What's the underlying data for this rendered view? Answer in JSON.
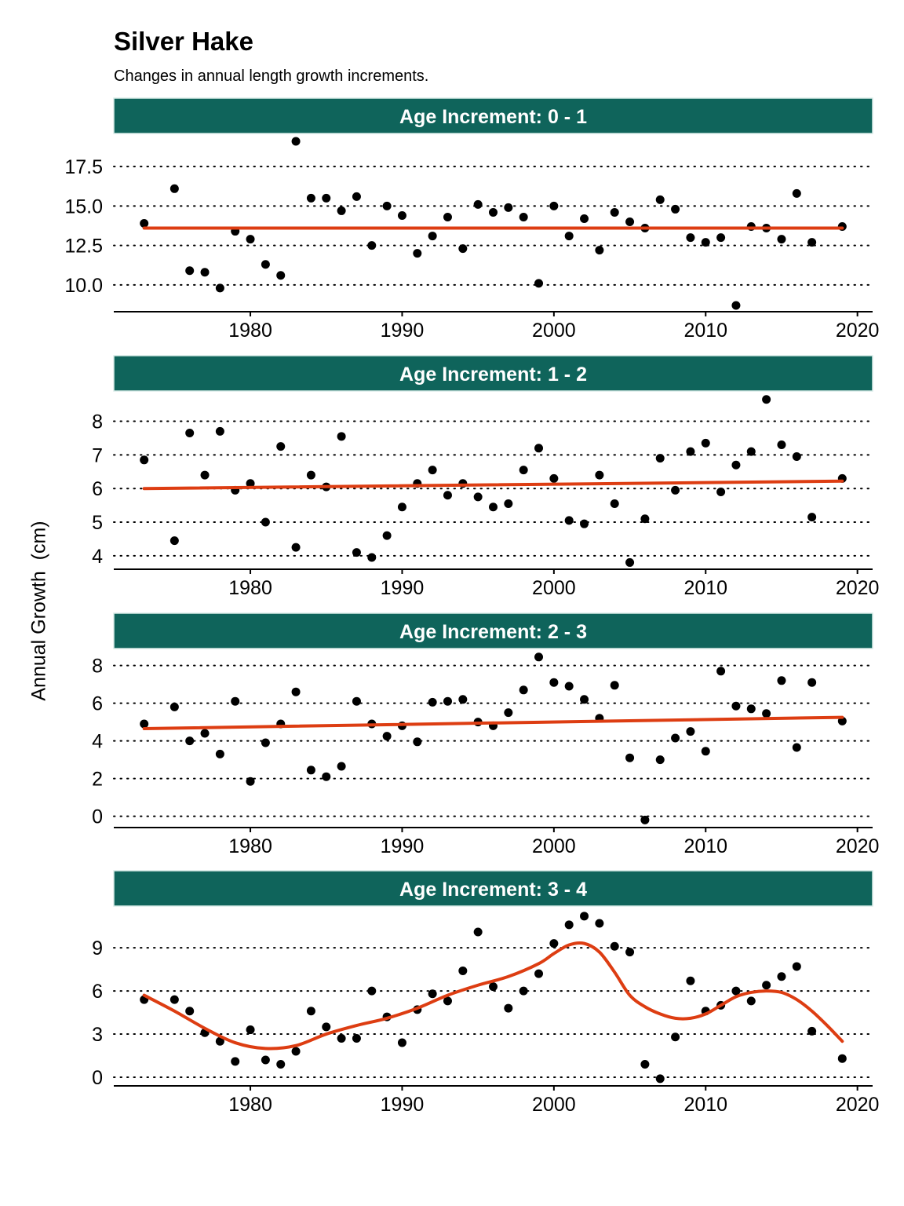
{
  "header": {
    "title": "Silver Hake",
    "subtitle": "Changes in annual length growth increments."
  },
  "y_axis_label": "Annual Growth  (cm)",
  "colors": {
    "strip_fill": "#0f645b",
    "strip_text": "#ffffff",
    "fit_line": "#dd3d12",
    "points": "#000000"
  },
  "chart_data": [
    {
      "type": "scatter",
      "panel_label": "Age Increment: 0 - 1",
      "xlim": [
        1971,
        2021
      ],
      "xticks": [
        1980,
        1990,
        2000,
        2010,
        2020
      ],
      "ylim": [
        8.3,
        19.6
      ],
      "yticks": [
        10,
        12.5,
        15,
        17.5
      ],
      "ytick_labels": [
        "10.0",
        "12.5",
        "15.0",
        "17.5"
      ],
      "grid": "horizontal dotted",
      "points": {
        "x": [
          1973,
          1975,
          1976,
          1977,
          1978,
          1979,
          1980,
          1981,
          1982,
          1983,
          1984,
          1985,
          1986,
          1987,
          1988,
          1989,
          1990,
          1991,
          1992,
          1993,
          1994,
          1995,
          1996,
          1997,
          1998,
          1999,
          2000,
          2001,
          2002,
          2003,
          2004,
          2005,
          2006,
          2007,
          2008,
          2009,
          2010,
          2011,
          2012,
          2013,
          2014,
          2015,
          2016,
          2017,
          2019
        ],
        "y": [
          13.9,
          16.1,
          10.9,
          10.8,
          9.8,
          13.4,
          12.9,
          11.3,
          10.6,
          19.1,
          15.5,
          15.5,
          14.7,
          15.6,
          12.5,
          15.0,
          14.4,
          12.0,
          13.1,
          14.3,
          12.3,
          15.1,
          14.6,
          14.9,
          14.3,
          10.1,
          15.0,
          13.1,
          14.2,
          12.2,
          14.6,
          14.0,
          13.6,
          15.4,
          14.8,
          13.0,
          12.7,
          13.0,
          8.7,
          13.7,
          13.6,
          12.9,
          15.8,
          12.7,
          13.7
        ]
      },
      "fit": {
        "type": "linear",
        "x": [
          1973,
          2019
        ],
        "y": [
          13.6,
          13.6
        ]
      }
    },
    {
      "type": "scatter",
      "panel_label": "Age Increment: 1 - 2",
      "xlim": [
        1971,
        2021
      ],
      "xticks": [
        1980,
        1990,
        2000,
        2010,
        2020
      ],
      "ylim": [
        3.6,
        8.9
      ],
      "yticks": [
        4,
        5,
        6,
        7,
        8
      ],
      "ytick_labels": [
        "4",
        "5",
        "6",
        "7",
        "8"
      ],
      "grid": "horizontal dotted",
      "points": {
        "x": [
          1973,
          1975,
          1976,
          1977,
          1978,
          1979,
          1980,
          1981,
          1982,
          1983,
          1984,
          1985,
          1986,
          1987,
          1988,
          1989,
          1990,
          1991,
          1992,
          1993,
          1994,
          1995,
          1996,
          1997,
          1998,
          1999,
          2000,
          2001,
          2002,
          2003,
          2004,
          2005,
          2006,
          2007,
          2008,
          2009,
          2010,
          2011,
          2012,
          2013,
          2014,
          2015,
          2016,
          2017,
          2019
        ],
        "y": [
          6.85,
          4.45,
          7.65,
          6.4,
          7.7,
          5.95,
          6.15,
          5.0,
          7.25,
          4.25,
          6.4,
          6.05,
          7.55,
          4.1,
          3.95,
          4.6,
          5.45,
          6.15,
          6.55,
          5.8,
          6.15,
          5.75,
          5.45,
          5.55,
          6.55,
          7.2,
          6.3,
          5.05,
          4.95,
          6.4,
          5.55,
          3.8,
          5.1,
          6.9,
          5.95,
          7.1,
          7.35,
          5.9,
          6.7,
          7.1,
          8.65,
          7.3,
          6.95,
          5.15,
          6.3
        ]
      },
      "fit": {
        "type": "linear",
        "x": [
          1973,
          2019
        ],
        "y": [
          6.0,
          6.22
        ]
      }
    },
    {
      "type": "scatter",
      "panel_label": "Age Increment: 2 - 3",
      "xlim": [
        1971,
        2021
      ],
      "xticks": [
        1980,
        1990,
        2000,
        2010,
        2020
      ],
      "ylim": [
        -0.6,
        8.9
      ],
      "yticks": [
        0,
        2,
        4,
        6,
        8
      ],
      "ytick_labels": [
        "0",
        "2",
        "4",
        "6",
        "8"
      ],
      "grid": "horizontal dotted",
      "points": {
        "x": [
          1973,
          1975,
          1976,
          1977,
          1978,
          1979,
          1980,
          1981,
          1982,
          1983,
          1984,
          1985,
          1986,
          1987,
          1988,
          1989,
          1990,
          1991,
          1992,
          1993,
          1994,
          1995,
          1996,
          1997,
          1998,
          1999,
          2000,
          2001,
          2002,
          2003,
          2004,
          2005,
          2006,
          2007,
          2008,
          2009,
          2010,
          2011,
          2012,
          2013,
          2014,
          2015,
          2016,
          2017,
          2019
        ],
        "y": [
          4.9,
          5.8,
          4.0,
          4.4,
          3.3,
          6.1,
          1.85,
          3.9,
          4.9,
          6.6,
          2.45,
          2.1,
          2.65,
          6.1,
          4.9,
          4.25,
          4.8,
          3.95,
          6.05,
          6.1,
          6.2,
          5.0,
          4.8,
          5.5,
          6.7,
          8.45,
          7.1,
          6.9,
          6.2,
          5.2,
          6.95,
          3.1,
          -0.2,
          3.0,
          4.15,
          4.5,
          3.45,
          7.7,
          5.85,
          5.7,
          5.45,
          7.2,
          3.65,
          7.1,
          5.05
        ]
      },
      "fit": {
        "type": "linear",
        "x": [
          1973,
          2019
        ],
        "y": [
          4.65,
          5.25
        ]
      }
    },
    {
      "type": "scatter",
      "panel_label": "Age Increment: 3 - 4",
      "xlim": [
        1971,
        2021
      ],
      "xticks": [
        1980,
        1990,
        2000,
        2010,
        2020
      ],
      "ylim": [
        -0.6,
        11.9
      ],
      "yticks": [
        0,
        3,
        6,
        9
      ],
      "ytick_labels": [
        "0",
        "3",
        "6",
        "9"
      ],
      "grid": "horizontal dotted",
      "points": {
        "x": [
          1973,
          1975,
          1976,
          1977,
          1978,
          1979,
          1980,
          1981,
          1982,
          1983,
          1984,
          1985,
          1986,
          1987,
          1988,
          1989,
          1990,
          1991,
          1992,
          1993,
          1994,
          1995,
          1996,
          1997,
          1998,
          1999,
          2000,
          2001,
          2002,
          2003,
          2004,
          2005,
          2006,
          2007,
          2008,
          2009,
          2010,
          2011,
          2012,
          2013,
          2014,
          2015,
          2016,
          2017,
          2019
        ],
        "y": [
          5.4,
          5.4,
          4.6,
          3.1,
          2.5,
          1.1,
          3.3,
          1.2,
          0.9,
          1.8,
          4.6,
          3.5,
          2.7,
          2.7,
          6.0,
          4.2,
          2.4,
          4.7,
          5.8,
          5.3,
          7.4,
          10.1,
          6.3,
          4.8,
          6.0,
          7.2,
          9.3,
          10.6,
          11.2,
          10.7,
          9.1,
          8.7,
          0.9,
          -0.1,
          2.8,
          6.7,
          4.6,
          5.0,
          6.0,
          5.3,
          6.4,
          7.0,
          7.7,
          3.2,
          1.3
        ]
      },
      "fit": {
        "type": "smooth",
        "x": [
          1973,
          1975,
          1977,
          1979,
          1981,
          1983,
          1985,
          1987,
          1989,
          1991,
          1993,
          1995,
          1997,
          1999,
          2000,
          2001,
          2002,
          2003,
          2004,
          2005,
          2006,
          2007,
          2008,
          2009,
          2010,
          2011,
          2012,
          2013,
          2014,
          2015,
          2016,
          2017,
          2018,
          2019
        ],
        "y": [
          5.7,
          4.6,
          3.4,
          2.4,
          2.0,
          2.2,
          3.0,
          3.6,
          4.1,
          4.8,
          5.7,
          6.4,
          7.0,
          7.9,
          8.6,
          9.2,
          9.3,
          8.7,
          7.3,
          5.7,
          4.9,
          4.4,
          4.1,
          4.1,
          4.4,
          5.0,
          5.6,
          5.9,
          6.0,
          5.9,
          5.4,
          4.6,
          3.6,
          2.5
        ]
      }
    }
  ]
}
